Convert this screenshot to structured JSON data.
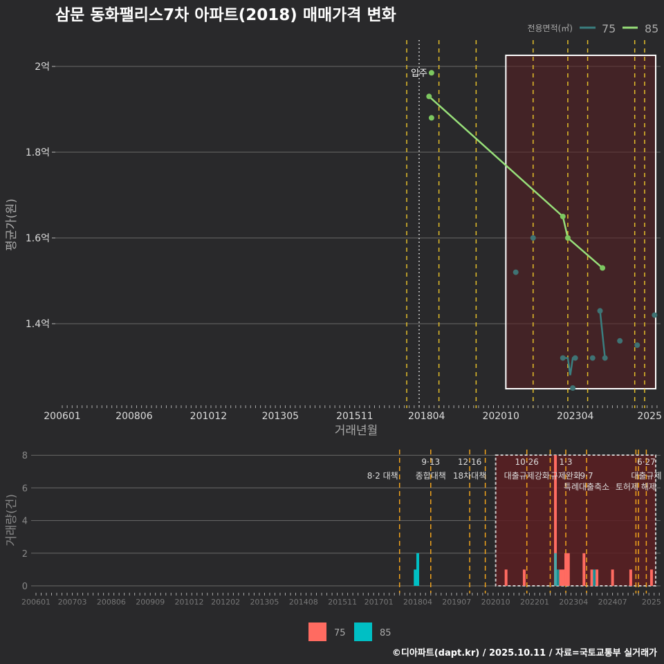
{
  "title": "삼문 동화팰리스7차 아파트(2018) 매매가격 변화",
  "footer": "©디아파트(dapt.kr) / 2025.10.11 / 자료=국토교통부 실거래가",
  "colors": {
    "bg": "#29292b",
    "s75": "#3a7f80",
    "s85": "#98e07a",
    "bar75": "#ff6b61",
    "bar85": "#00bfc4",
    "zone": "#5a1f22",
    "policy": "#e6c02a",
    "policy2": "#f2a41c"
  },
  "chart_data": [
    {
      "type": "line",
      "title": "삼문 동화팰리스7차 아파트(2018) 매매가격 변화",
      "xlabel": "거래년월",
      "ylabel": "평균가(원)",
      "legend_title": "전용면적(㎡)",
      "legend_position": "top-right",
      "ylim": [
        1.22,
        2.06
      ],
      "yticks": [
        {
          "v": 2.0,
          "label": "2억"
        },
        {
          "v": 1.8,
          "label": "1.8억"
        },
        {
          "v": 1.6,
          "label": "1.6억"
        },
        {
          "v": 1.4,
          "label": "1.4억"
        }
      ],
      "xticks": [
        "200601",
        "200806",
        "201012",
        "201305",
        "201511",
        "201804",
        "202010",
        "202304",
        "2025"
      ],
      "xtick_months": [
        0,
        29,
        59,
        88,
        118,
        147,
        177,
        207,
        237
      ],
      "series": [
        {
          "name": "75",
          "line": [
            [
              "2022-11",
              1.32
            ],
            [
              "2023-01",
              1.32
            ],
            [
              "2023-02",
              1.28
            ],
            [
              "2023-03",
              1.32
            ],
            [
              "2023-04",
              1.32
            ]
          ],
          "line2": [
            [
              "2024-02",
              1.43
            ],
            [
              "2024-04",
              1.32
            ]
          ],
          "points": [
            [
              "2021-04",
              1.52
            ],
            [
              "2021-11",
              1.6
            ],
            [
              "2022-11",
              1.32
            ],
            [
              "2023-04",
              1.32
            ],
            [
              "2023-03",
              1.25
            ],
            [
              "2023-11",
              1.32
            ],
            [
              "2024-02",
              1.43
            ],
            [
              "2024-04",
              1.32
            ],
            [
              "2024-10",
              1.36
            ],
            [
              "2025-05",
              1.35
            ],
            [
              "2025-12",
              1.42
            ]
          ]
        },
        {
          "name": "85",
          "line": [
            [
              "2018-05",
              1.93
            ],
            [
              "2022-11",
              1.65
            ],
            [
              "2023-01",
              1.6
            ],
            [
              "2024-03",
              1.53
            ]
          ],
          "points": [
            [
              "2018-06",
              1.985
            ],
            [
              "2018-05",
              1.93
            ],
            [
              "2018-06",
              1.88
            ],
            [
              "2022-11",
              1.65
            ],
            [
              "2023-01",
              1.6
            ],
            [
              "2024-03",
              1.53
            ]
          ]
        }
      ],
      "movein": {
        "date": "2018-01",
        "label": "입주"
      },
      "policy_lines": [
        "2017-08",
        "2018-09",
        "2019-12",
        "2021-11",
        "2023-01",
        "2023-09",
        "2025-04",
        "2025-08"
      ],
      "zone": [
        "2020-12",
        "2025-12"
      ]
    },
    {
      "type": "bar",
      "ylabel": "거래량(건)",
      "ylim": [
        0,
        8
      ],
      "yticks": [
        0,
        2,
        4,
        6,
        8
      ],
      "xticks": [
        "200601",
        "200703",
        "200806",
        "200909",
        "201012",
        "201202",
        "201305",
        "201408",
        "201511",
        "201701",
        "201804",
        "201907",
        "202010",
        "202201",
        "202304",
        "202407",
        "2025"
      ],
      "xtick_months": [
        0,
        14,
        29,
        44,
        59,
        73,
        88,
        103,
        118,
        132,
        147,
        162,
        177,
        192,
        207,
        222,
        237
      ],
      "legend": [
        "75",
        "85"
      ],
      "bars": [
        {
          "s": "85",
          "d": "2018-03",
          "v": 1
        },
        {
          "s": "85",
          "d": "2018-04",
          "v": 2
        },
        {
          "s": "75",
          "d": "2021-02",
          "v": 1
        },
        {
          "s": "75",
          "d": "2021-09",
          "v": 1
        },
        {
          "s": "75",
          "d": "2022-09",
          "v": 8
        },
        {
          "s": "85",
          "d": "2022-09",
          "v": 2
        },
        {
          "s": "85",
          "d": "2022-10",
          "v": 1
        },
        {
          "s": "75",
          "d": "2022-11",
          "v": 1
        },
        {
          "s": "75",
          "d": "2022-12",
          "v": 1
        },
        {
          "s": "75",
          "d": "2023-01",
          "v": 2
        },
        {
          "s": "75",
          "d": "2023-02",
          "v": 2
        },
        {
          "s": "75",
          "d": "2023-08",
          "v": 2
        },
        {
          "s": "75",
          "d": "2023-11",
          "v": 1
        },
        {
          "s": "85",
          "d": "2023-12",
          "v": 1
        },
        {
          "s": "75",
          "d": "2024-01",
          "v": 1
        },
        {
          "s": "75",
          "d": "2024-07",
          "v": 1
        },
        {
          "s": "75",
          "d": "2025-02",
          "v": 1
        },
        {
          "s": "75",
          "d": "2025-10",
          "v": 1
        }
      ],
      "policy_lines": [
        "2017-09",
        "2018-09",
        "2019-12",
        "2020-06",
        "2021-10",
        "2022-07",
        "2023-01",
        "2023-09",
        "2025-04",
        "2025-05",
        "2025-08"
      ],
      "zone": [
        "2020-10",
        "2025-10"
      ],
      "annotations": [
        {
          "d": "2017-09",
          "row": 1,
          "text": "8·2 대책",
          "anchor": "end"
        },
        {
          "d": "2018-09",
          "row": 0,
          "text": "9·13"
        },
        {
          "d": "2018-09",
          "row": 1,
          "text": "종합대책"
        },
        {
          "d": "2019-12",
          "row": 0,
          "text": "12·16"
        },
        {
          "d": "2019-12",
          "row": 1,
          "text": "18차대책"
        },
        {
          "d": "2021-10",
          "row": 0,
          "text": "10·26"
        },
        {
          "d": "2021-10",
          "row": 1,
          "text": "대출규제강화"
        },
        {
          "d": "2023-01",
          "row": 0,
          "text": "1·3"
        },
        {
          "d": "2023-01",
          "row": 1,
          "text": "규제완화"
        },
        {
          "d": "2023-09",
          "row": 1,
          "text": "9·7"
        },
        {
          "d": "2023-09",
          "row": 2,
          "text": "특례대출축소"
        },
        {
          "d": "2025-04",
          "row": 2,
          "text": "토허제 해제"
        },
        {
          "d": "2025-08",
          "row": 0,
          "text": "6·27"
        },
        {
          "d": "2025-08",
          "row": 1,
          "text": "대출규제"
        }
      ]
    }
  ]
}
